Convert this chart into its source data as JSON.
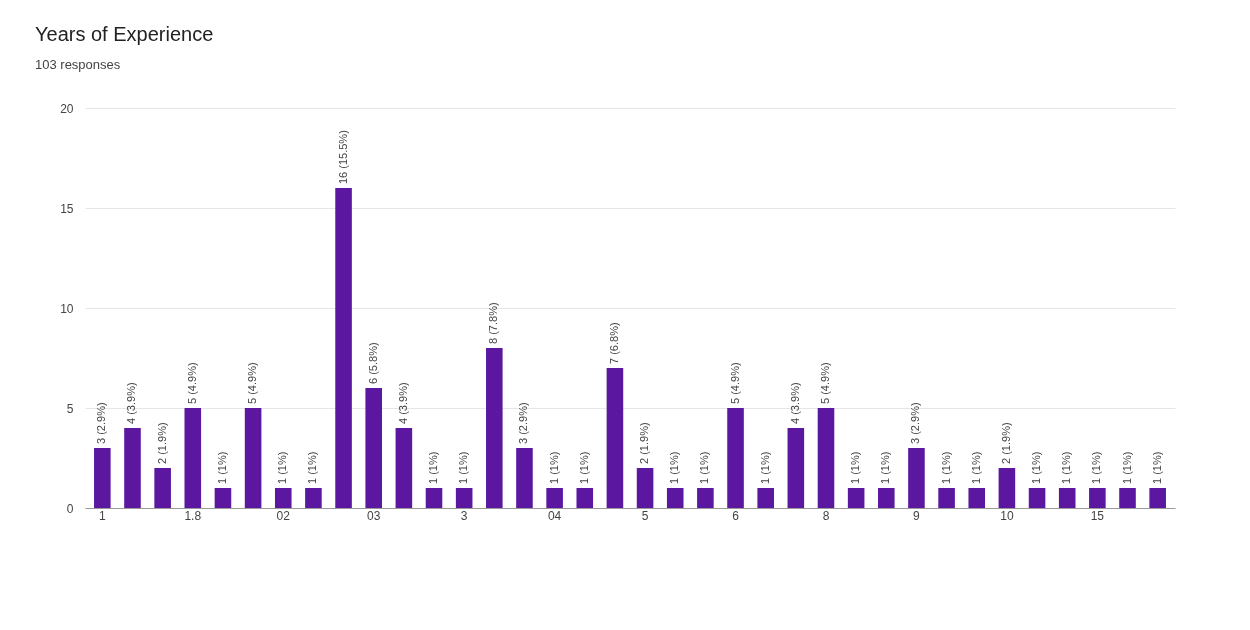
{
  "chart_data": {
    "type": "bar",
    "title": "Years of Experience",
    "subtitle": "103 responses",
    "categories": [
      "1",
      null,
      null,
      "1.8",
      null,
      null,
      "02",
      null,
      null,
      "03",
      null,
      null,
      "3",
      null,
      null,
      "04",
      null,
      null,
      "5",
      null,
      null,
      "6",
      null,
      null,
      "8",
      null,
      null,
      "9",
      null,
      null,
      "10",
      null,
      null,
      "15",
      null,
      null
    ],
    "values": [
      3,
      4,
      2,
      5,
      1,
      5,
      1,
      1,
      16,
      6,
      4,
      1,
      1,
      8,
      3,
      1,
      1,
      7,
      2,
      1,
      1,
      5,
      1,
      4,
      5,
      1,
      1,
      3,
      1,
      1,
      2,
      1,
      1,
      1,
      1,
      1
    ],
    "value_labels": [
      "3 (2.9%)",
      "4 (3.9%)",
      "2 (1.9%)",
      "5 (4.9%)",
      "1 (1%)",
      "5 (4.9%)",
      "1 (1%)",
      "1 (1%)",
      "16 (15.5%)",
      "6 (5.8%)",
      "4 (3.9%)",
      "1 (1%)",
      "1 (1%)",
      "8 (7.8%)",
      "3 (2.9%)",
      "1 (1%)",
      "1 (1%)",
      "7 (6.8%)",
      "2 (1.9%)",
      "1 (1%)",
      "1 (1%)",
      "5 (4.9%)",
      "1 (1%)",
      "4 (3.9%)",
      "5 (4.9%)",
      "1 (1%)",
      "1 (1%)",
      "3 (2.9%)",
      "1 (1%)",
      "1 (1%)",
      "2 (1.9%)",
      "1 (1%)",
      "1 (1%)",
      "1 (1%)",
      "1 (1%)",
      "1 (1%)"
    ],
    "color": "#5b17a0",
    "ylim": [
      0,
      20
    ],
    "yticks": [
      0,
      5,
      10,
      15,
      20
    ],
    "grid": "y"
  }
}
